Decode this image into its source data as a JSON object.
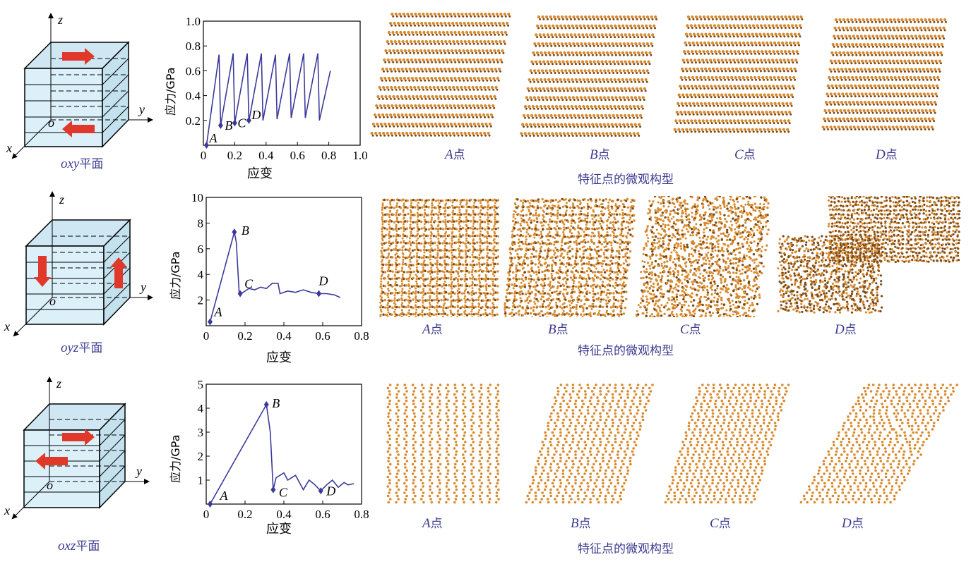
{
  "rows": [
    {
      "plane_label_italic": "oxy",
      "plane_label_suffix": "平面",
      "axes": {
        "z": "z",
        "y": "y",
        "x": "x",
        "origin": "o"
      },
      "panels": [
        {
          "point": "A",
          "suffix": "点"
        },
        {
          "point": "B",
          "suffix": "点"
        },
        {
          "point": "C",
          "suffix": "点"
        },
        {
          "point": "D",
          "suffix": "点"
        }
      ],
      "caption": "特征点的微观构型"
    },
    {
      "plane_label_italic": "oyz",
      "plane_label_suffix": "平面",
      "axes": {
        "z": "z",
        "y": "y",
        "x": "x",
        "origin": "o"
      },
      "panels": [
        {
          "point": "A",
          "suffix": "点"
        },
        {
          "point": "B",
          "suffix": "点"
        },
        {
          "point": "C",
          "suffix": "点"
        },
        {
          "point": "D",
          "suffix": "点"
        }
      ],
      "caption": "特征点的微观构型"
    },
    {
      "plane_label_italic": "oxz",
      "plane_label_suffix": "平面",
      "axes": {
        "z": "z",
        "y": "y",
        "x": "x",
        "origin": "o"
      },
      "panels": [
        {
          "point": "A",
          "suffix": "点"
        },
        {
          "point": "B",
          "suffix": "点"
        },
        {
          "point": "C",
          "suffix": "点"
        },
        {
          "point": "D",
          "suffix": "点"
        }
      ],
      "caption": "特征点的微观构型"
    }
  ],
  "colors": {
    "line": "#3b3a9a",
    "label": "#3b3a8f",
    "atom": "#d98a2e",
    "atom_dark": "#7a4a1a",
    "cube_fill": "#d6ecf6",
    "arrow": "#e0392b"
  },
  "chart_data": [
    {
      "type": "line",
      "xlabel": "应变",
      "ylabel": "应力/GPa",
      "xlim": [
        0,
        1.0
      ],
      "ylim": [
        0,
        1.0
      ],
      "xticks": [
        "0",
        "0.2",
        "0.4",
        "0.6",
        "0.8",
        "1.0"
      ],
      "yticks": [
        "0.2",
        "0.4",
        "0.6",
        "0.8",
        "1.0"
      ],
      "x": [
        0.02,
        0.1,
        0.11,
        0.19,
        0.2,
        0.28,
        0.29,
        0.37,
        0.38,
        0.46,
        0.47,
        0.55,
        0.56,
        0.64,
        0.65,
        0.73,
        0.74,
        0.81
      ],
      "y": [
        0.0,
        0.73,
        0.16,
        0.74,
        0.18,
        0.74,
        0.19,
        0.74,
        0.2,
        0.73,
        0.21,
        0.74,
        0.22,
        0.74,
        0.22,
        0.74,
        0.2,
        0.6
      ],
      "points": [
        {
          "label": "A",
          "x": 0.02,
          "y": 0.0
        },
        {
          "label": "B",
          "x": 0.11,
          "y": 0.16
        },
        {
          "label": "C",
          "x": 0.2,
          "y": 0.18
        },
        {
          "label": "D",
          "x": 0.29,
          "y": 0.2
        }
      ]
    },
    {
      "type": "line",
      "xlabel": "应变",
      "ylabel": "应力/GPa",
      "xlim": [
        0,
        0.8
      ],
      "ylim": [
        0,
        10
      ],
      "xticks": [
        "0",
        "0.2",
        "0.4",
        "0.6",
        "0.8"
      ],
      "yticks": [
        "2",
        "4",
        "6",
        "8",
        "10"
      ],
      "x": [
        0.02,
        0.145,
        0.155,
        0.17,
        0.19,
        0.22,
        0.25,
        0.28,
        0.31,
        0.34,
        0.37,
        0.38,
        0.42,
        0.46,
        0.5,
        0.54,
        0.58,
        0.62,
        0.66,
        0.69
      ],
      "y": [
        0.3,
        7.3,
        6.5,
        2.5,
        2.6,
        2.9,
        2.8,
        3.0,
        2.9,
        3.3,
        3.3,
        2.5,
        2.7,
        2.6,
        2.8,
        2.6,
        2.5,
        2.5,
        2.4,
        2.2
      ],
      "points": [
        {
          "label": "A",
          "x": 0.02,
          "y": 0.3
        },
        {
          "label": "B",
          "x": 0.145,
          "y": 7.3
        },
        {
          "label": "C",
          "x": 0.175,
          "y": 2.5
        },
        {
          "label": "D",
          "x": 0.58,
          "y": 2.5
        }
      ]
    },
    {
      "type": "line",
      "xlabel": "应变",
      "ylabel": "应力/GPa",
      "xlim": [
        0,
        0.8
      ],
      "ylim": [
        0,
        5
      ],
      "xticks": [
        "0",
        "0.2",
        "0.4",
        "0.6",
        "0.8"
      ],
      "yticks": [
        "1",
        "2",
        "3",
        "4",
        "5"
      ],
      "x": [
        0.02,
        0.31,
        0.33,
        0.345,
        0.36,
        0.38,
        0.4,
        0.42,
        0.44,
        0.46,
        0.48,
        0.5,
        0.53,
        0.56,
        0.59,
        0.62,
        0.65,
        0.68,
        0.71,
        0.73,
        0.76
      ],
      "y": [
        0.0,
        4.15,
        3.0,
        0.6,
        1.1,
        1.2,
        1.3,
        1.0,
        1.1,
        1.2,
        0.9,
        0.6,
        1.0,
        0.8,
        0.55,
        0.8,
        1.0,
        0.7,
        0.9,
        0.8,
        0.85
      ],
      "points": [
        {
          "label": "A",
          "x": 0.02,
          "y": 0.0
        },
        {
          "label": "B",
          "x": 0.31,
          "y": 4.15
        },
        {
          "label": "C",
          "x": 0.345,
          "y": 0.6
        },
        {
          "label": "D",
          "x": 0.59,
          "y": 0.55
        }
      ]
    }
  ]
}
